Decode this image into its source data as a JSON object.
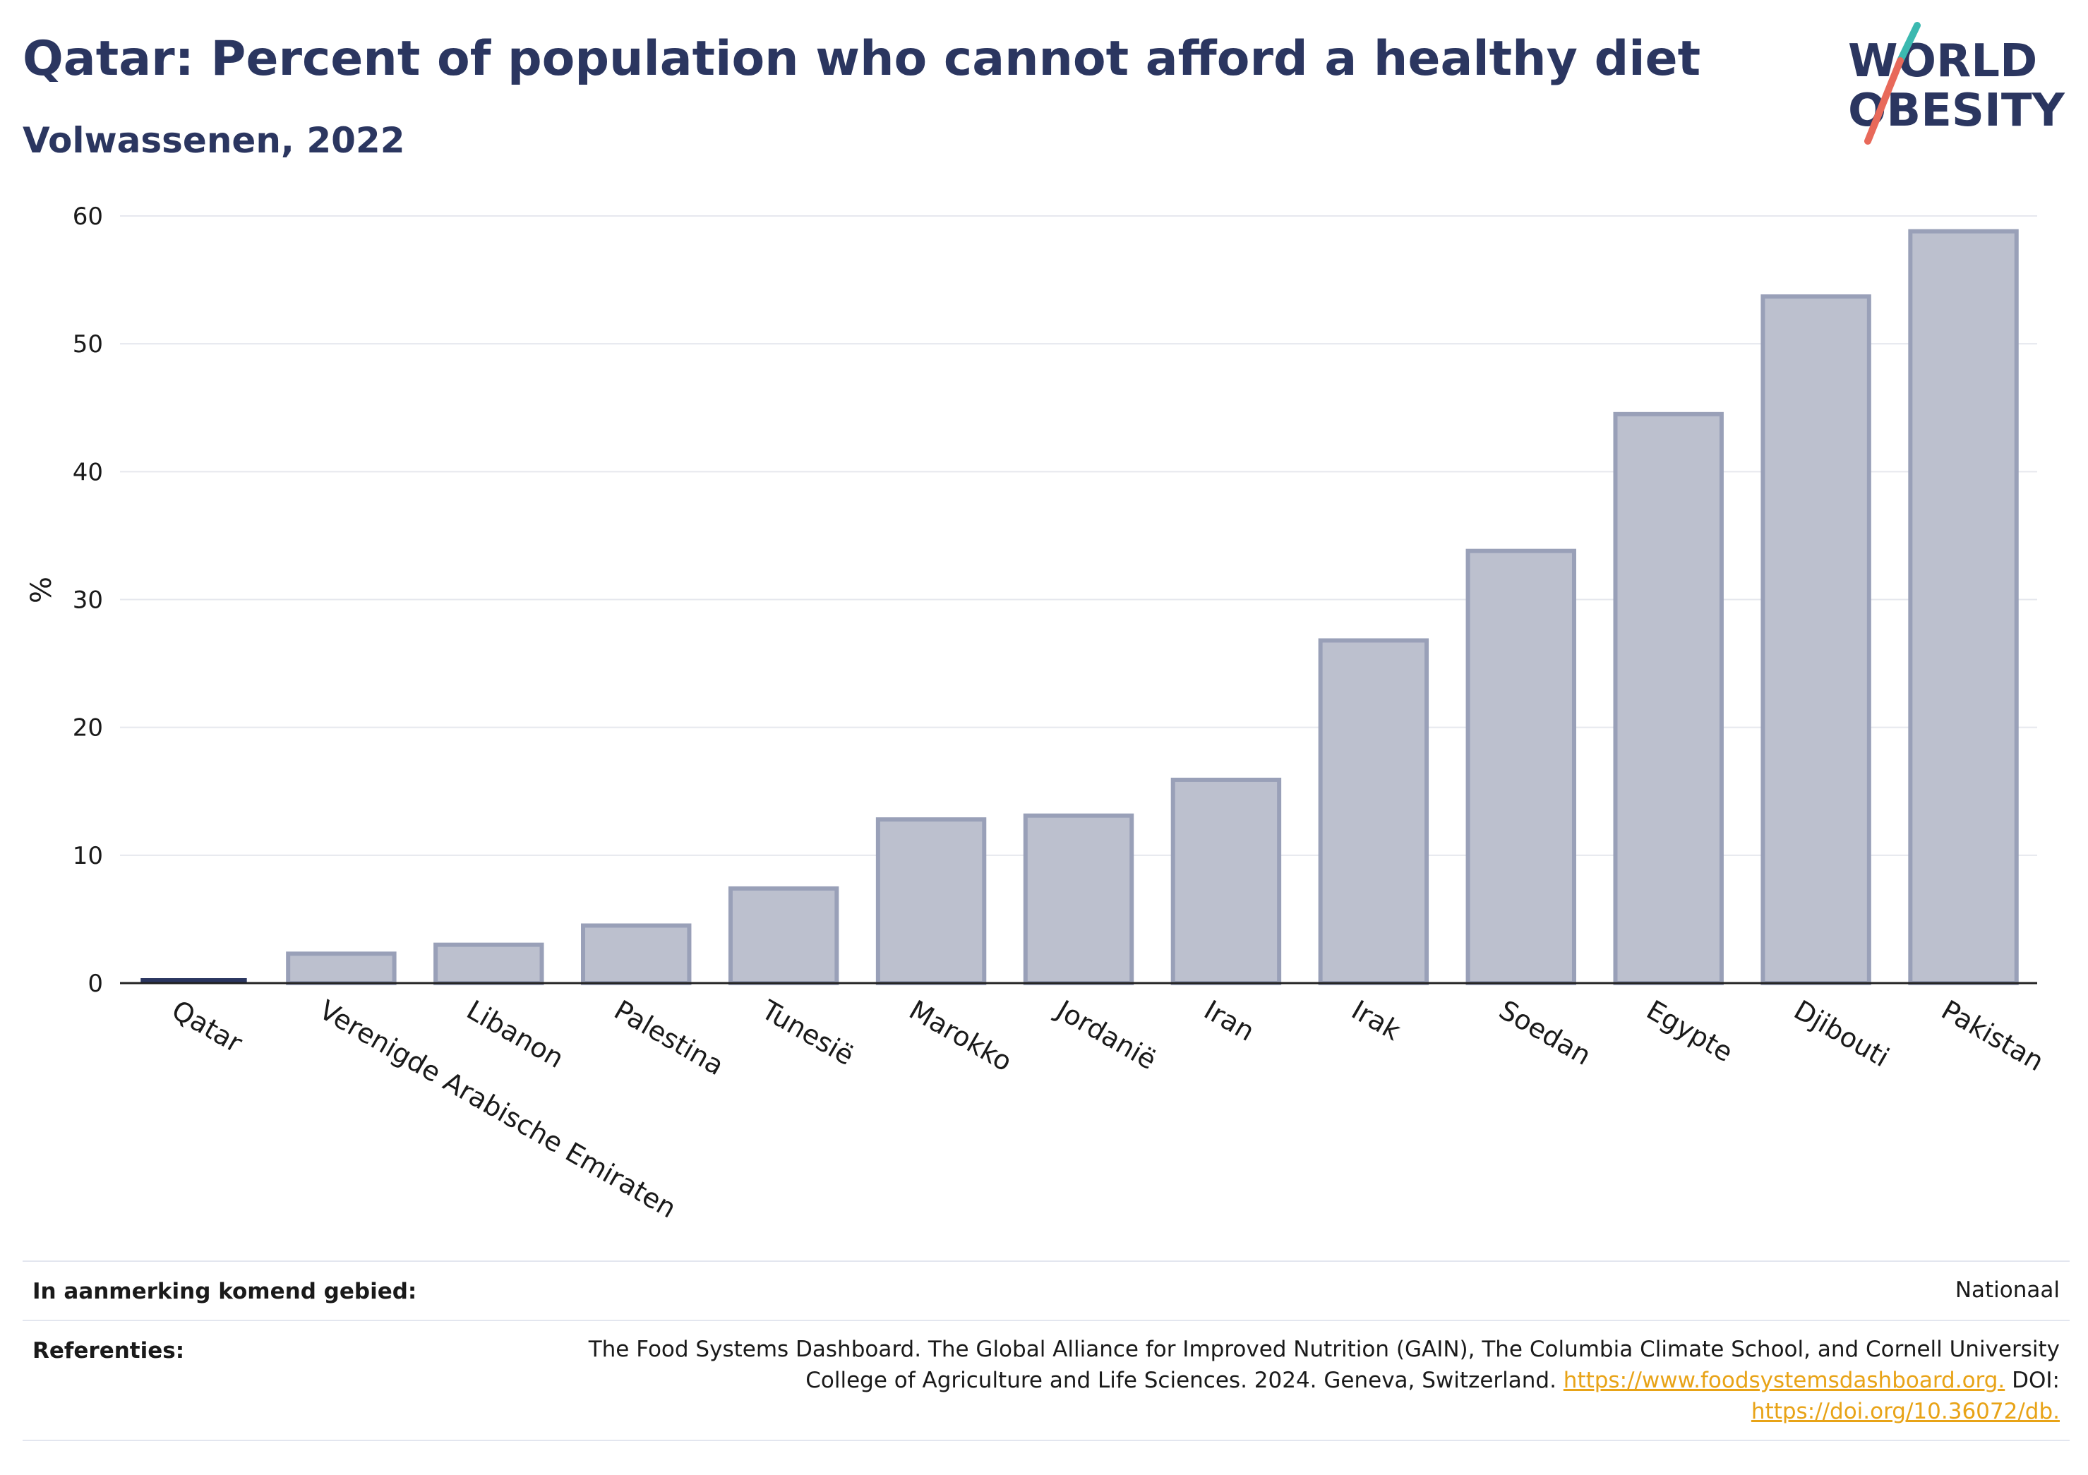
{
  "header": {
    "title": "Qatar: Percent of population who cannot afford a healthy diet",
    "subtitle": "Volwassenen, 2022",
    "logo_line1": "WORLD",
    "logo_line2": "OBESITY"
  },
  "chart_data": {
    "type": "bar",
    "title": "Qatar: Percent of population who cannot afford a healthy diet",
    "subtitle": "Volwassenen, 2022",
    "ylabel": "%",
    "xlabel": "",
    "ylim": [
      0,
      60
    ],
    "yticks": [
      0,
      10,
      20,
      30,
      40,
      50,
      60
    ],
    "grid": true,
    "categories": [
      "Qatar",
      "Verenigde Arabische Emiraten",
      "Libanon",
      "Palestina",
      "Tunesië",
      "Marokko",
      "Jordanië",
      "Iran",
      "Irak",
      "Soedan",
      "Egypte",
      "Djibouti",
      "Pakistan"
    ],
    "values": [
      0.1,
      2.3,
      3.0,
      4.5,
      7.4,
      12.8,
      13.1,
      15.9,
      26.8,
      33.8,
      44.5,
      53.7,
      58.8
    ],
    "highlight_category": "Qatar",
    "colors": {
      "highlight": "#2b3660",
      "bar_fill": "#bcc0ce",
      "bar_stroke": "#99a0b8",
      "grid": "#e6e8ee",
      "axis": "#222222"
    }
  },
  "footer": {
    "eligible_label": "In aanmerking komend gebied:",
    "eligible_value": "Nationaal",
    "references_label": "Referenties:",
    "references_line1": "The Food Systems Dashboard. The Global Alliance for Improved Nutrition (GAIN), The Columbia Climate School, and Cornell University",
    "references_line2_text": "College of Agriculture and Life Sciences. 2024. Geneva, Switzerland.",
    "references_link1": "https://www.foodsystemsdashboard.org.",
    "references_doi_label": "DOI:",
    "references_link2": "https://doi.org/10.36072/db."
  }
}
